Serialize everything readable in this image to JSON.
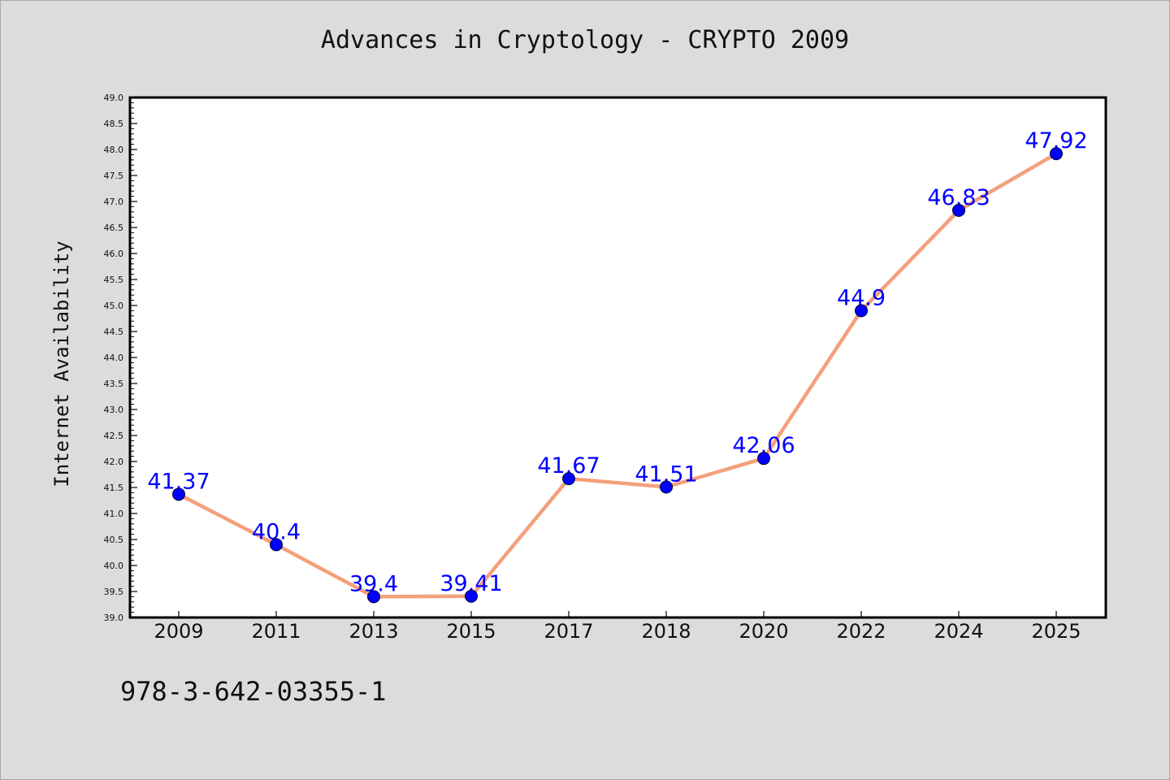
{
  "title": "Advances in Cryptology - CRYPTO 2009",
  "footer_text": "978-3-642-03355-1",
  "colors": {
    "background": "#dcdcdc",
    "plot_background": "#ffffff",
    "line": "#f4a07c",
    "marker": "#0000ff",
    "data_label": "#0000ff"
  },
  "chart_data": {
    "type": "line",
    "title": "Advances in Cryptology - CRYPTO 2009",
    "xlabel": "",
    "ylabel": "Internet Availability",
    "categories": [
      "2009",
      "2011",
      "2013",
      "2015",
      "2017",
      "2018",
      "2020",
      "2022",
      "2024",
      "2025"
    ],
    "series": [
      {
        "values": [
          41.37,
          40.4,
          39.4,
          39.41,
          41.67,
          41.51,
          42.06,
          44.9,
          46.83,
          47.92
        ],
        "data_labels": [
          "41.37",
          "40.4",
          "39.4",
          "39.41",
          "41.67",
          "41.51",
          "42.06",
          "44.9",
          "46.83",
          "47.92"
        ]
      }
    ],
    "ylim": [
      39.0,
      49.0
    ],
    "yticks": [
      "39.0",
      "39.5",
      "40.0",
      "40.5",
      "41.0",
      "41.5",
      "42.0",
      "42.5",
      "43.0",
      "43.5",
      "44.0",
      "44.5",
      "45.0",
      "45.5",
      "46.0",
      "46.5",
      "47.0",
      "47.5",
      "48.0",
      "48.5",
      "49.0"
    ],
    "grid": false,
    "legend": "none"
  }
}
